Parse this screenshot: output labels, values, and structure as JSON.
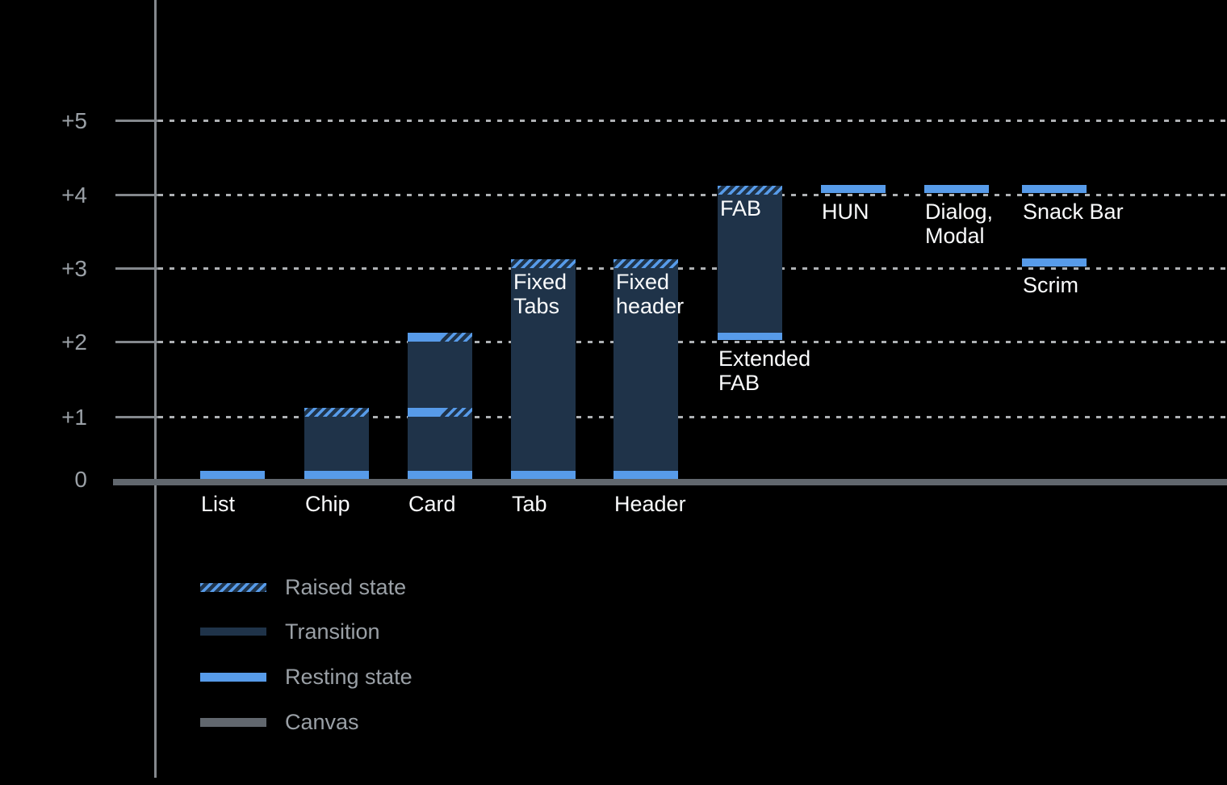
{
  "chart_data": {
    "type": "bar",
    "title": "",
    "description": "Elevation diagram of UI components: resting state, transition range and raised state per component",
    "y_axis": {
      "ticks": [
        {
          "label": "+5",
          "level": 5
        },
        {
          "label": "+4",
          "level": 4
        },
        {
          "label": "+3",
          "level": 3
        },
        {
          "label": "+2",
          "level": 2
        },
        {
          "label": "+1",
          "level": 1
        },
        {
          "label": "0",
          "level": 0
        }
      ],
      "range": [
        0,
        5
      ]
    },
    "bars": [
      {
        "name": "list",
        "column": 0,
        "label_lines": [
          "List"
        ],
        "label_position": "baseline",
        "resting_levels": [
          0
        ]
      },
      {
        "name": "chip",
        "column": 1,
        "label_lines": [
          "Chip"
        ],
        "label_position": "baseline",
        "resting_levels": [
          0
        ],
        "transition_range": [
          0,
          1
        ],
        "raised_levels": [
          1
        ],
        "raised_width": "full"
      },
      {
        "name": "card",
        "column": 2,
        "label_lines": [
          "Card"
        ],
        "label_position": "baseline",
        "resting_levels": [
          0,
          1,
          2
        ],
        "transition_range": [
          0,
          2
        ],
        "raised_levels": [
          1,
          2
        ],
        "raised_width": "half"
      },
      {
        "name": "tab",
        "column": 3,
        "label_lines": [
          "Tab"
        ],
        "label_position": "baseline",
        "inner_label_lines": [
          "Fixed",
          "Tabs"
        ],
        "resting_levels": [
          0
        ],
        "transition_range": [
          0,
          3
        ],
        "raised_levels": [
          3
        ],
        "raised_width": "full"
      },
      {
        "name": "header",
        "column": 4,
        "label_lines": [
          "Header"
        ],
        "label_position": "baseline",
        "inner_label_lines": [
          "Fixed",
          "header"
        ],
        "resting_levels": [
          0
        ],
        "transition_range": [
          0,
          3
        ],
        "raised_levels": [
          3
        ],
        "raised_width": "full"
      },
      {
        "name": "extended-fab",
        "column": 5,
        "label_lines": [
          "Extended",
          "FAB"
        ],
        "label_position": "below",
        "inner_label_lines": [
          "FAB"
        ],
        "resting_levels": [
          2
        ],
        "transition_range": [
          2,
          4
        ],
        "raised_levels": [
          4
        ],
        "raised_width": "full"
      },
      {
        "name": "hun",
        "column": 6,
        "label_lines": [
          "HUN"
        ],
        "label_position": "below",
        "resting_levels": [
          4
        ]
      },
      {
        "name": "dialog-modal",
        "column": 7,
        "label_lines": [
          "Dialog,",
          "Modal"
        ],
        "label_position": "below",
        "resting_levels": [
          4
        ]
      },
      {
        "name": "snack-bar",
        "column": 8,
        "label_lines": [
          "Snack Bar"
        ],
        "label_position": "below",
        "resting_levels": [
          4
        ]
      },
      {
        "name": "scrim",
        "column": 8,
        "label_lines": [
          "Scrim"
        ],
        "label_position": "below",
        "resting_levels": [
          3
        ]
      }
    ],
    "legend": [
      {
        "label": "Raised state",
        "style": "raised"
      },
      {
        "label": "Transition",
        "style": "transition"
      },
      {
        "label": "Resting state",
        "style": "resting"
      },
      {
        "label": "Canvas",
        "style": "canvas"
      }
    ]
  },
  "colors": {
    "background": "#000000",
    "resting_blue": "#579be9",
    "transition_navy": "#1f3349",
    "canvas_gray": "#61676e",
    "axis_gray": "#84888d",
    "grid_gray": "#aeb1b4",
    "tick_label_gray": "#9aa0a6",
    "component_label_white": "#fafbfc"
  }
}
